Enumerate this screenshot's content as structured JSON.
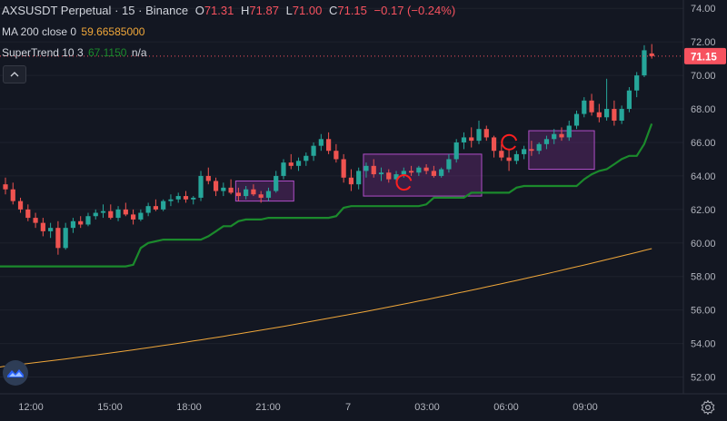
{
  "header": {
    "symbol": "AXSUSDT Perpetual",
    "sep1": "·",
    "interval": "15",
    "sep2": "·",
    "exchange": "Binance",
    "open_label": "O",
    "open": "71.31",
    "high_label": "H",
    "high": "71.87",
    "low_label": "L",
    "low": "71.00",
    "close_label": "C",
    "close": "71.15",
    "change": "−0.17 (−0.24%)"
  },
  "indicators": {
    "ma": {
      "label": "MA 200 close 0",
      "value": "59.66585000",
      "color": "#f0a73a"
    },
    "supertrend": {
      "label": "SuperTrend 10 3",
      "value": "67.1150",
      "value2": "n/a",
      "color": "#1b8a2c"
    }
  },
  "price_axis": {
    "ticks": [
      "74.00",
      "72.00",
      "70.00",
      "68.00",
      "66.00",
      "64.00",
      "62.00",
      "60.00",
      "58.00",
      "56.00",
      "54.00",
      "52.00"
    ],
    "current_price": "71.15",
    "current_price_color": "#f7525f"
  },
  "time_axis": {
    "ticks": [
      "12:00",
      "15:00",
      "18:00",
      "21:00",
      "7",
      "03:00",
      "06:00",
      "09:00"
    ]
  },
  "colors": {
    "up": "#26a69a",
    "down": "#ef5350",
    "background": "#131722",
    "grid": "#1e222d",
    "box_fill": "#7b2f8a",
    "box_stroke": "#b04ec8",
    "annotation": "#ff1f1f"
  },
  "icons": {
    "collapse": "chevron-up-icon",
    "logo": "tradingview-logo-icon",
    "settings": "gear-icon"
  },
  "chart_data": {
    "type": "candlestick",
    "symbol": "AXSUSDT Perpetual",
    "interval": "15",
    "ylim": [
      51,
      74.5
    ],
    "series": [
      {
        "name": "MA 200 close 0",
        "type": "line",
        "last": 59.66585
      },
      {
        "name": "SuperTrend 10 3",
        "type": "step-line",
        "last": 67.115
      }
    ],
    "x_tick_labels": [
      "12:00",
      "15:00",
      "18:00",
      "21:00",
      "7",
      "03:00",
      "06:00",
      "09:00"
    ],
    "y_tick_labels": [
      "74.00",
      "72.00",
      "70.00",
      "68.00",
      "66.00",
      "64.00",
      "62.00",
      "60.00",
      "58.00",
      "56.00",
      "54.00",
      "52.00"
    ],
    "last_close": 71.15,
    "ohlc": [
      [
        63.5,
        63.9,
        62.9,
        63.2
      ],
      [
        63.2,
        63.6,
        62.3,
        62.5
      ],
      [
        62.5,
        62.7,
        61.8,
        62.0
      ],
      [
        62.0,
        62.3,
        61.3,
        61.5
      ],
      [
        61.5,
        61.8,
        60.9,
        61.2
      ],
      [
        61.2,
        61.5,
        60.4,
        60.7
      ],
      [
        60.7,
        61.2,
        60.3,
        60.9
      ],
      [
        60.9,
        61.3,
        59.3,
        59.7
      ],
      [
        59.7,
        61.2,
        59.6,
        60.9
      ],
      [
        60.9,
        61.5,
        60.6,
        61.3
      ],
      [
        61.3,
        61.6,
        60.9,
        61.1
      ],
      [
        61.1,
        61.8,
        61.0,
        61.6
      ],
      [
        61.6,
        62.0,
        61.4,
        61.8
      ],
      [
        61.8,
        62.3,
        61.5,
        61.9
      ],
      [
        61.9,
        62.3,
        61.4,
        61.5
      ],
      [
        61.5,
        62.2,
        61.3,
        62.0
      ],
      [
        62.0,
        62.4,
        61.6,
        61.7
      ],
      [
        61.7,
        62.0,
        61.1,
        61.4
      ],
      [
        61.4,
        62.0,
        61.3,
        61.8
      ],
      [
        61.8,
        62.4,
        61.6,
        62.2
      ],
      [
        62.2,
        62.6,
        61.9,
        62.0
      ],
      [
        62.0,
        62.6,
        61.9,
        62.5
      ],
      [
        62.5,
        62.9,
        62.2,
        62.6
      ],
      [
        62.6,
        63.0,
        62.4,
        62.8
      ],
      [
        62.8,
        63.1,
        62.4,
        62.6
      ],
      [
        62.6,
        62.8,
        62.3,
        62.7
      ],
      [
        62.7,
        64.3,
        62.5,
        64.0
      ],
      [
        64.0,
        64.5,
        63.5,
        63.7
      ],
      [
        63.7,
        63.9,
        62.8,
        63.1
      ],
      [
        63.1,
        63.6,
        62.8,
        63.3
      ],
      [
        63.3,
        63.8,
        62.9,
        63.0
      ],
      [
        63.0,
        63.3,
        62.5,
        62.8
      ],
      [
        62.8,
        63.4,
        62.6,
        63.2
      ],
      [
        63.2,
        63.5,
        62.8,
        62.9
      ],
      [
        62.9,
        63.1,
        62.4,
        62.7
      ],
      [
        62.7,
        63.3,
        62.5,
        63.1
      ],
      [
        63.1,
        64.3,
        63.0,
        64.0
      ],
      [
        64.0,
        65.0,
        63.8,
        64.8
      ],
      [
        64.8,
        65.3,
        64.4,
        64.6
      ],
      [
        64.6,
        65.1,
        64.3,
        64.9
      ],
      [
        64.9,
        65.4,
        64.6,
        65.2
      ],
      [
        65.2,
        66.0,
        64.9,
        65.8
      ],
      [
        65.8,
        66.5,
        65.5,
        66.2
      ],
      [
        66.2,
        66.6,
        65.3,
        65.5
      ],
      [
        65.5,
        65.9,
        64.8,
        65.0
      ],
      [
        65.0,
        65.3,
        63.6,
        63.9
      ],
      [
        63.9,
        64.4,
        63.1,
        63.5
      ],
      [
        63.5,
        64.5,
        63.2,
        64.3
      ],
      [
        64.3,
        64.8,
        63.9,
        64.6
      ],
      [
        64.6,
        65.0,
        63.9,
        64.1
      ],
      [
        64.1,
        64.5,
        63.7,
        64.2
      ],
      [
        64.2,
        64.4,
        63.6,
        63.8
      ],
      [
        63.8,
        64.3,
        63.6,
        64.1
      ],
      [
        64.1,
        64.5,
        63.9,
        64.3
      ],
      [
        64.3,
        64.6,
        64.0,
        64.2
      ],
      [
        64.2,
        64.6,
        64.0,
        64.5
      ],
      [
        64.5,
        64.7,
        64.1,
        64.3
      ],
      [
        64.3,
        64.6,
        63.9,
        64.0
      ],
      [
        64.0,
        64.5,
        63.9,
        64.4
      ],
      [
        64.4,
        65.3,
        64.2,
        65.0
      ],
      [
        65.0,
        66.2,
        64.8,
        66.0
      ],
      [
        66.0,
        66.6,
        65.6,
        66.3
      ],
      [
        66.3,
        66.9,
        65.7,
        66.1
      ],
      [
        66.1,
        67.3,
        65.9,
        66.8
      ],
      [
        66.8,
        67.0,
        66.1,
        66.3
      ],
      [
        66.3,
        66.4,
        65.1,
        65.5
      ],
      [
        65.5,
        65.9,
        64.9,
        65.1
      ],
      [
        65.1,
        65.6,
        64.3,
        64.9
      ],
      [
        64.9,
        65.5,
        64.7,
        65.3
      ],
      [
        65.3,
        65.8,
        65.0,
        65.6
      ],
      [
        65.6,
        66.1,
        65.2,
        65.5
      ],
      [
        65.5,
        66.0,
        65.3,
        65.9
      ],
      [
        65.9,
        66.4,
        65.6,
        66.2
      ],
      [
        66.2,
        66.8,
        65.9,
        66.5
      ],
      [
        66.5,
        66.9,
        66.1,
        66.3
      ],
      [
        66.3,
        67.3,
        66.1,
        67.0
      ],
      [
        67.0,
        67.9,
        66.8,
        67.7
      ],
      [
        67.7,
        68.7,
        67.5,
        68.5
      ],
      [
        68.5,
        68.9,
        67.6,
        67.8
      ],
      [
        67.8,
        68.3,
        67.2,
        67.5
      ],
      [
        67.5,
        69.8,
        67.3,
        68.0
      ],
      [
        68.0,
        68.5,
        67.0,
        67.3
      ],
      [
        67.3,
        68.2,
        67.1,
        68.0
      ],
      [
        68.0,
        69.3,
        67.8,
        69.1
      ],
      [
        69.1,
        70.2,
        68.7,
        70.0
      ],
      [
        70.0,
        71.8,
        69.9,
        71.5
      ],
      [
        71.31,
        71.87,
        71.0,
        71.15
      ]
    ],
    "annotations": [
      {
        "type": "rectangle",
        "t_from": 31,
        "t_to": 38,
        "p_low": 62.5,
        "p_high": 63.7
      },
      {
        "type": "rectangle",
        "t_from": 48,
        "t_to": 63,
        "p_low": 62.8,
        "p_high": 65.3
      },
      {
        "type": "rectangle",
        "t_from": 70,
        "t_to": 78,
        "p_low": 64.4,
        "p_high": 66.7
      },
      {
        "type": "circle",
        "t": 53,
        "p": 63.6
      },
      {
        "type": "circle",
        "t": 67,
        "p": 66.0
      }
    ]
  }
}
